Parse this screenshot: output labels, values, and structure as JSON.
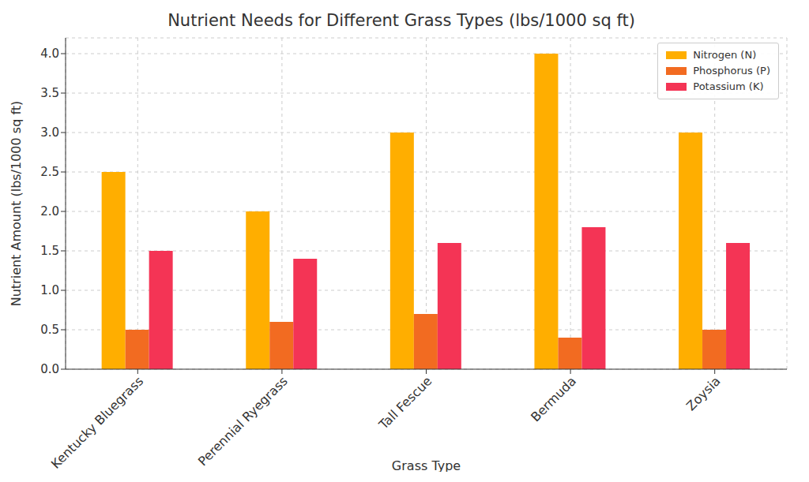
{
  "chart_data": {
    "type": "bar",
    "title": "Nutrient Needs for Different Grass Types (lbs/1000 sq ft)",
    "x_label": "Grass Type",
    "y_label": "Nutrient Amount (lbs/1000 sq ft)",
    "categories": [
      "Kentucky Bluegrass",
      "Perennial Ryegrass",
      "Tall Fescue",
      "Bermuda",
      "Zoysia"
    ],
    "series": [
      {
        "name": "Nitrogen (N)",
        "color": "#ffae00",
        "values": [
          2.5,
          2.0,
          3.0,
          4.0,
          3.0
        ]
      },
      {
        "name": "Phosphorus (P)",
        "color": "#f26b21",
        "values": [
          0.5,
          0.6,
          0.7,
          0.4,
          0.5
        ]
      },
      {
        "name": "Potassium (K)",
        "color": "#f43455",
        "values": [
          1.5,
          1.4,
          1.6,
          1.8,
          1.6
        ]
      }
    ],
    "ylim": [
      0,
      4.2
    ],
    "yticks": [
      {
        "value": 0,
        "label": "0.0"
      },
      0.5,
      {
        "value": 1,
        "label": "1.0"
      },
      1.5,
      {
        "value": 2,
        "label": "2.0"
      },
      2.5,
      {
        "value": 3,
        "label": "3.0"
      },
      3.5,
      {
        "value": 4,
        "label": "4.0"
      }
    ],
    "grid": true,
    "legend": "upper right"
  }
}
